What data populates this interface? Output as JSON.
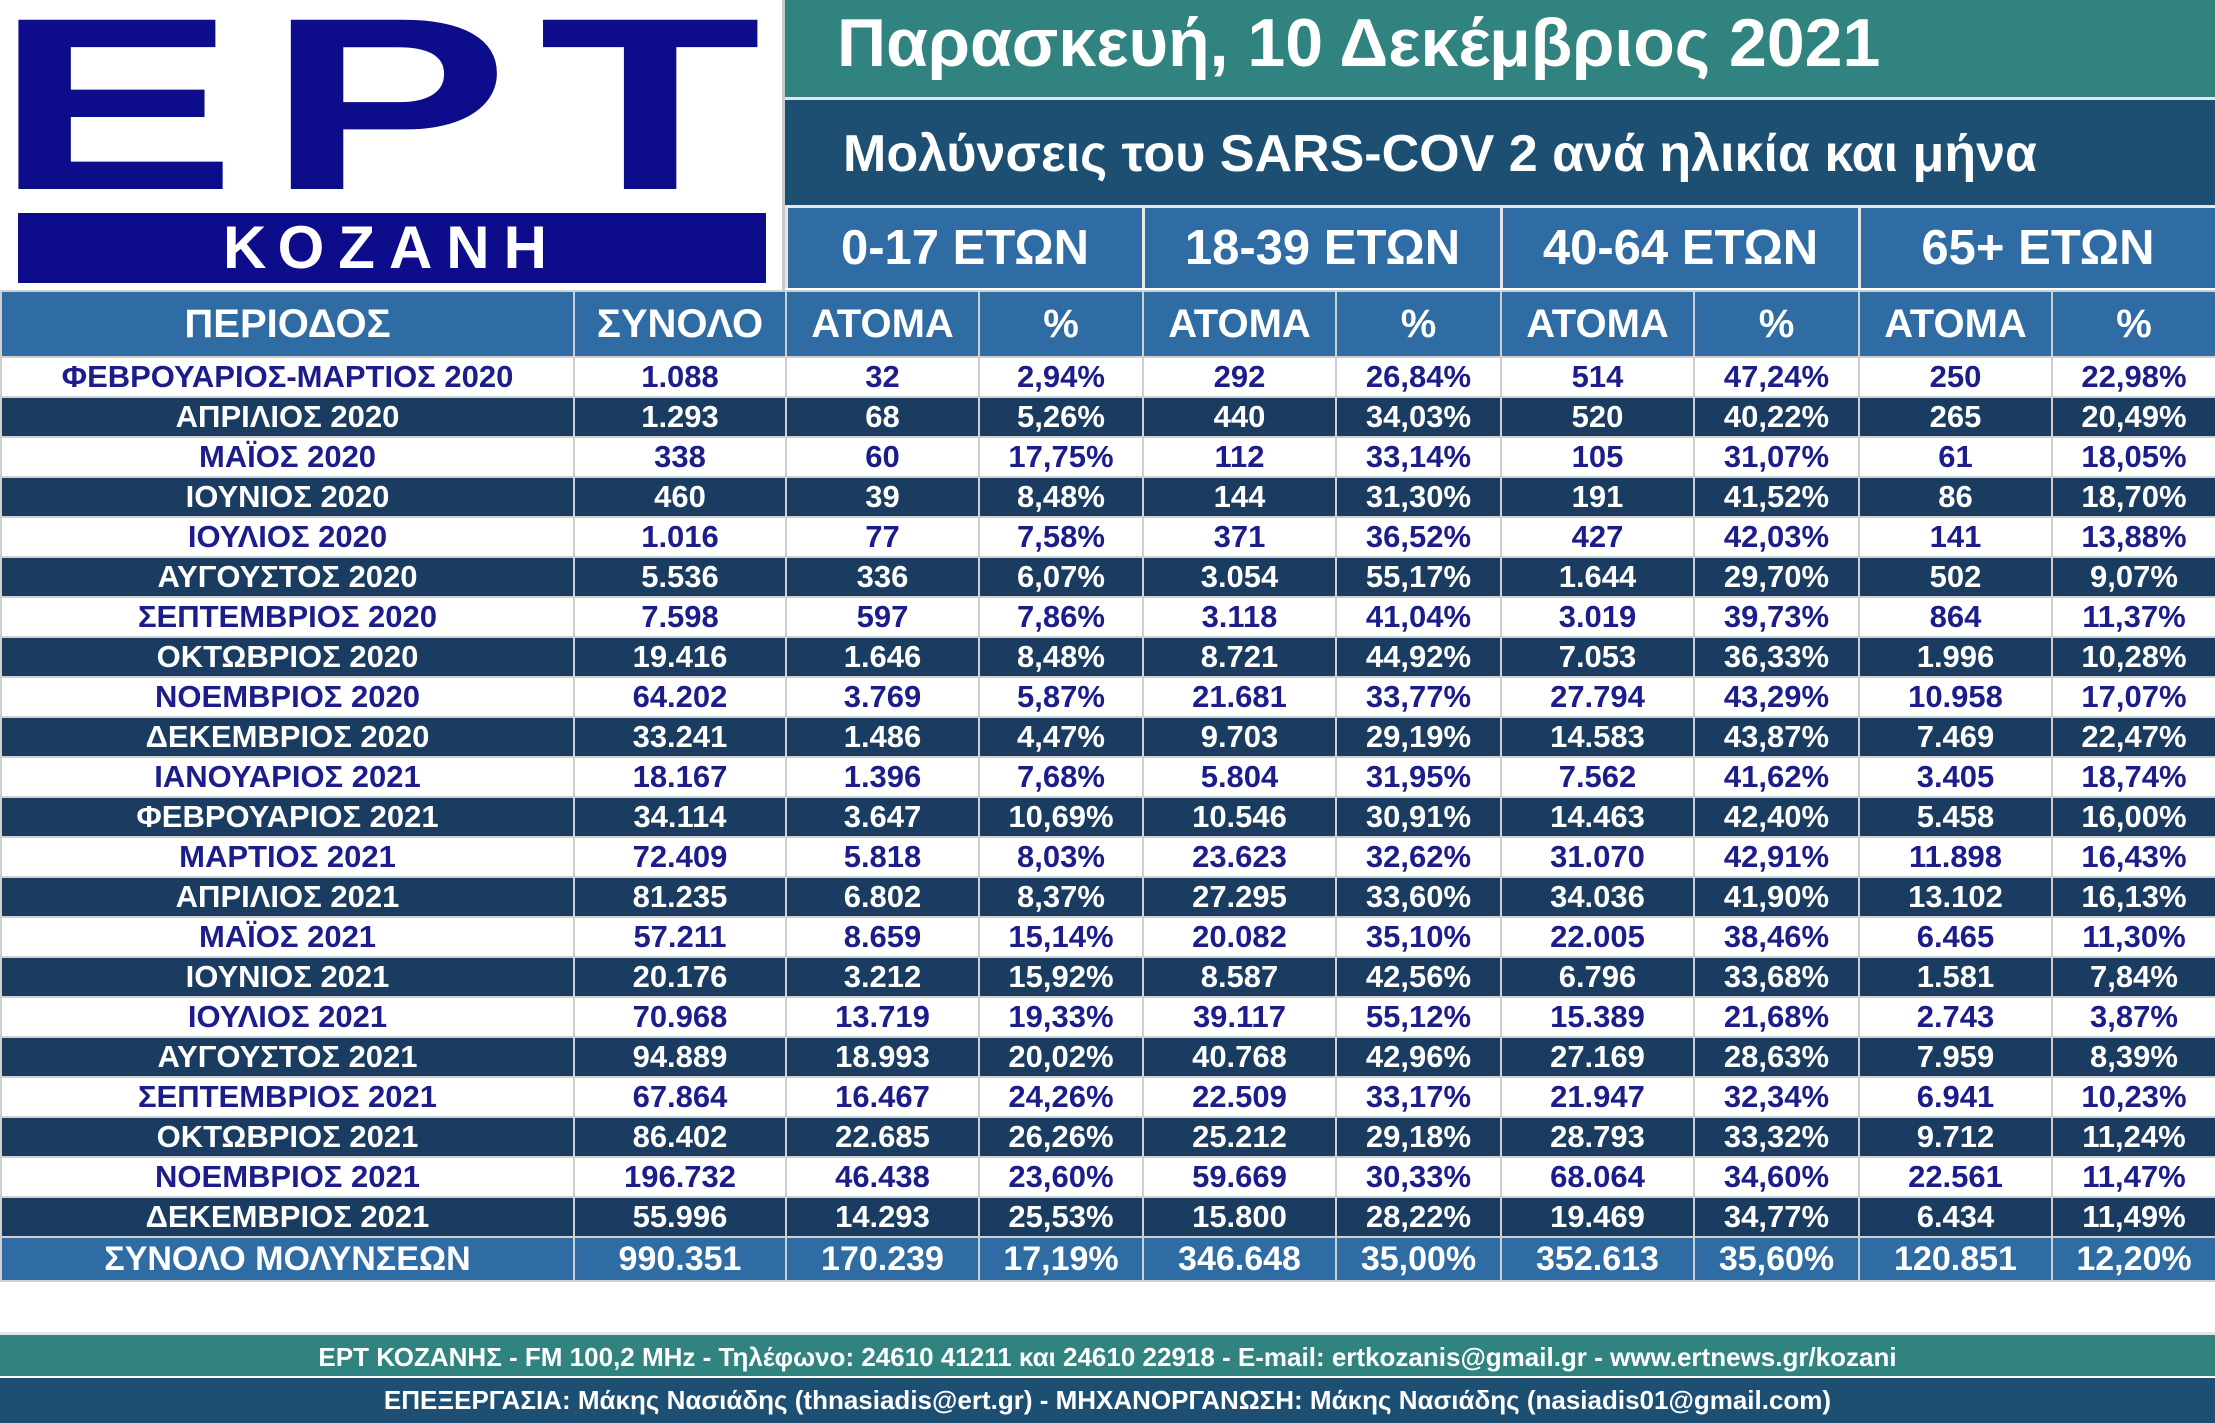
{
  "logo": {
    "brand": "EPT",
    "city": "ΚΟΖΑΝΗ"
  },
  "header": {
    "date": "Παρασκευή, 10 Δεκέμβριος 2021",
    "subtitle": "Μολύνσεις του SARS-COV 2 ανά ηλικία και μήνα"
  },
  "age_groups": [
    "0-17 ΕΤΩΝ",
    "18-39 ΕΤΩΝ",
    "40-64 ΕΤΩΝ",
    "65+  ΕΤΩΝ"
  ],
  "columns": [
    "ΠΕΡΙΟΔΟΣ",
    "ΣΥΝΟΛΟ",
    "ΑΤΟΜΑ",
    "%",
    "ΑΤΟΜΑ",
    "%",
    "ΑΤΟΜΑ",
    "%",
    "ΑΤΟΜΑ",
    "%"
  ],
  "rows": [
    [
      "ΦΕΒΡΟΥΑΡΙΟΣ-ΜΑΡΤΙΟΣ 2020",
      "1.088",
      "32",
      "2,94%",
      "292",
      "26,84%",
      "514",
      "47,24%",
      "250",
      "22,98%"
    ],
    [
      "ΑΠΡΙΛΙΟΣ 2020",
      "1.293",
      "68",
      "5,26%",
      "440",
      "34,03%",
      "520",
      "40,22%",
      "265",
      "20,49%"
    ],
    [
      "ΜΑΪΟΣ 2020",
      "338",
      "60",
      "17,75%",
      "112",
      "33,14%",
      "105",
      "31,07%",
      "61",
      "18,05%"
    ],
    [
      "ΙΟΥΝΙΟΣ 2020",
      "460",
      "39",
      "8,48%",
      "144",
      "31,30%",
      "191",
      "41,52%",
      "86",
      "18,70%"
    ],
    [
      "ΙΟΥΛΙΟΣ 2020",
      "1.016",
      "77",
      "7,58%",
      "371",
      "36,52%",
      "427",
      "42,03%",
      "141",
      "13,88%"
    ],
    [
      "ΑΥΓΟΥΣΤΟΣ 2020",
      "5.536",
      "336",
      "6,07%",
      "3.054",
      "55,17%",
      "1.644",
      "29,70%",
      "502",
      "9,07%"
    ],
    [
      "ΣΕΠΤΕΜΒΡΙΟΣ 2020",
      "7.598",
      "597",
      "7,86%",
      "3.118",
      "41,04%",
      "3.019",
      "39,73%",
      "864",
      "11,37%"
    ],
    [
      "ΟΚΤΩΒΡΙΟΣ 2020",
      "19.416",
      "1.646",
      "8,48%",
      "8.721",
      "44,92%",
      "7.053",
      "36,33%",
      "1.996",
      "10,28%"
    ],
    [
      "ΝΟΕΜΒΡΙΟΣ 2020",
      "64.202",
      "3.769",
      "5,87%",
      "21.681",
      "33,77%",
      "27.794",
      "43,29%",
      "10.958",
      "17,07%"
    ],
    [
      "ΔΕΚΕΜΒΡΙΟΣ 2020",
      "33.241",
      "1.486",
      "4,47%",
      "9.703",
      "29,19%",
      "14.583",
      "43,87%",
      "7.469",
      "22,47%"
    ],
    [
      "ΙΑΝΟΥΑΡΙΟΣ 2021",
      "18.167",
      "1.396",
      "7,68%",
      "5.804",
      "31,95%",
      "7.562",
      "41,62%",
      "3.405",
      "18,74%"
    ],
    [
      "ΦΕΒΡΟΥΑΡΙΟΣ 2021",
      "34.114",
      "3.647",
      "10,69%",
      "10.546",
      "30,91%",
      "14.463",
      "42,40%",
      "5.458",
      "16,00%"
    ],
    [
      "ΜΑΡΤΙΟΣ 2021",
      "72.409",
      "5.818",
      "8,03%",
      "23.623",
      "32,62%",
      "31.070",
      "42,91%",
      "11.898",
      "16,43%"
    ],
    [
      "ΑΠΡΙΛΙΟΣ 2021",
      "81.235",
      "6.802",
      "8,37%",
      "27.295",
      "33,60%",
      "34.036",
      "41,90%",
      "13.102",
      "16,13%"
    ],
    [
      "ΜΑΪΟΣ 2021",
      "57.211",
      "8.659",
      "15,14%",
      "20.082",
      "35,10%",
      "22.005",
      "38,46%",
      "6.465",
      "11,30%"
    ],
    [
      "ΙΟΥΝΙΟΣ 2021",
      "20.176",
      "3.212",
      "15,92%",
      "8.587",
      "42,56%",
      "6.796",
      "33,68%",
      "1.581",
      "7,84%"
    ],
    [
      "ΙΟΥΛΙΟΣ 2021",
      "70.968",
      "13.719",
      "19,33%",
      "39.117",
      "55,12%",
      "15.389",
      "21,68%",
      "2.743",
      "3,87%"
    ],
    [
      "ΑΥΓΟΥΣΤΟΣ 2021",
      "94.889",
      "18.993",
      "20,02%",
      "40.768",
      "42,96%",
      "27.169",
      "28,63%",
      "7.959",
      "8,39%"
    ],
    [
      "ΣΕΠΤΕΜΒΡΙΟΣ 2021",
      "67.864",
      "16.467",
      "24,26%",
      "22.509",
      "33,17%",
      "21.947",
      "32,34%",
      "6.941",
      "10,23%"
    ],
    [
      "ΟΚΤΩΒΡΙΟΣ 2021",
      "86.402",
      "22.685",
      "26,26%",
      "25.212",
      "29,18%",
      "28.793",
      "33,32%",
      "9.712",
      "11,24%"
    ],
    [
      "ΝΟΕΜΒΡΙΟΣ 2021",
      "196.732",
      "46.438",
      "23,60%",
      "59.669",
      "30,33%",
      "68.064",
      "34,60%",
      "22.561",
      "11,47%"
    ],
    [
      "ΔΕΚΕΜΒΡΙΟΣ 2021",
      "55.996",
      "14.293",
      "25,53%",
      "15.800",
      "28,22%",
      "19.469",
      "34,77%",
      "6.434",
      "11,49%"
    ]
  ],
  "total": [
    "ΣΥΝΟΛΟ ΜΟΛΥΝΣΕΩΝ",
    "990.351",
    "170.239",
    "17,19%",
    "346.648",
    "35,00%",
    "352.613",
    "35,60%",
    "120.851",
    "12,20%"
  ],
  "footer": {
    "contact": "ΕΡΤ ΚΟΖΑΝΗΣ - FM 100,2 MHz - Τηλέφωνο:  24610 41211 και 24610 22918 - E-mail: ertkozanis@gmail.gr - www.ertnews.gr/kozani",
    "credits": "ΕΠΕΞΕΡΓΑΣΙΑ: Μάκης Νασιάδης (thnasiadis@ert.gr) - ΜΗΧΑΝΟΡΓΑΝΩΣΗ: Μάκης Νασιάδης (nasiadis01@gmail.com)"
  },
  "colors": {
    "logo_blue": "#0d0d8c",
    "teal": "#31837f",
    "navy": "#1d4f73",
    "header_blue": "#2f6ca4",
    "dark_row": "#193c60",
    "light_row_text": "#1c1c8a"
  }
}
